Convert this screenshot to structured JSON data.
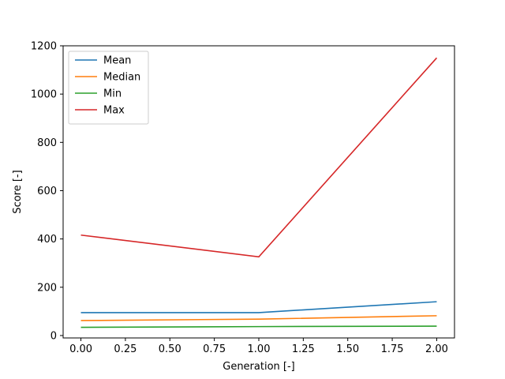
{
  "chart_data": {
    "type": "line",
    "title": "",
    "xlabel": "Generation [-]",
    "ylabel": "Score [-]",
    "xlim": [
      -0.1,
      2.1
    ],
    "ylim": [
      -10,
      1200
    ],
    "xticks": [
      0.0,
      0.25,
      0.5,
      0.75,
      1.0,
      1.25,
      1.5,
      1.75,
      2.0
    ],
    "xtick_labels": [
      "0.00",
      "0.25",
      "0.50",
      "0.75",
      "1.00",
      "1.25",
      "1.50",
      "1.75",
      "2.00"
    ],
    "yticks": [
      0,
      200,
      400,
      600,
      800,
      1000,
      1200
    ],
    "ytick_labels": [
      "0",
      "200",
      "400",
      "600",
      "800",
      "1000",
      "1200"
    ],
    "grid": false,
    "legend_position": "top-left",
    "x": [
      0,
      1,
      2
    ],
    "series": [
      {
        "name": "Mean",
        "values": [
          95,
          95,
          140
        ],
        "color": "#1f77b4"
      },
      {
        "name": "Median",
        "values": [
          62,
          68,
          82
        ],
        "color": "#ff7f0e"
      },
      {
        "name": "Min",
        "values": [
          34,
          37,
          39
        ],
        "color": "#2ca02c"
      },
      {
        "name": "Max",
        "values": [
          416,
          326,
          1150
        ],
        "color": "#d62728"
      }
    ]
  }
}
